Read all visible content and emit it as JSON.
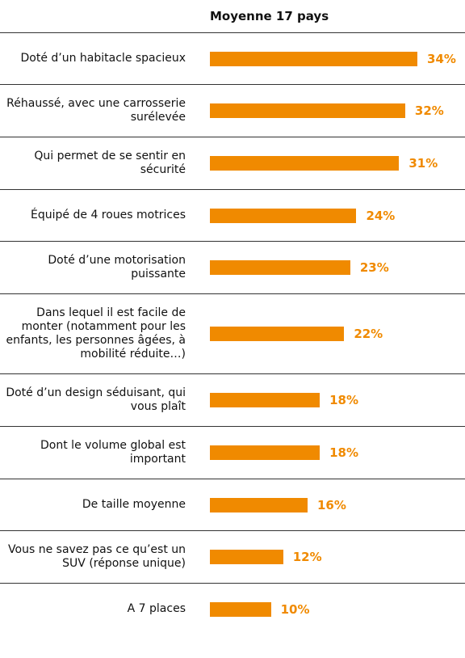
{
  "chart_data": {
    "type": "bar",
    "orientation": "horizontal",
    "title": "Moyenne 17 pays",
    "categories": [
      "Doté d’un habitacle spacieux",
      "Réhaussé, avec une carrosserie surélevée",
      "Qui permet de se sentir en sécurité",
      "Équipé de 4 roues motrices",
      "Doté d’une motorisation puissante",
      "Dans lequel il est facile de monter (notamment pour les enfants, les personnes âgées, à mobilité réduite…)",
      "Doté d’un design séduisant, qui vous plaît",
      "Dont le volume global est important",
      "De taille moyenne",
      "Vous ne savez pas ce qu’est un SUV (réponse unique)",
      "A 7 places"
    ],
    "values": [
      34,
      32,
      31,
      24,
      23,
      22,
      18,
      18,
      16,
      12,
      10
    ],
    "value_labels": [
      "34%",
      "32%",
      "31%",
      "24%",
      "23%",
      "22%",
      "18%",
      "18%",
      "16%",
      "12%",
      "10%"
    ],
    "color": "#f08a00"
  }
}
